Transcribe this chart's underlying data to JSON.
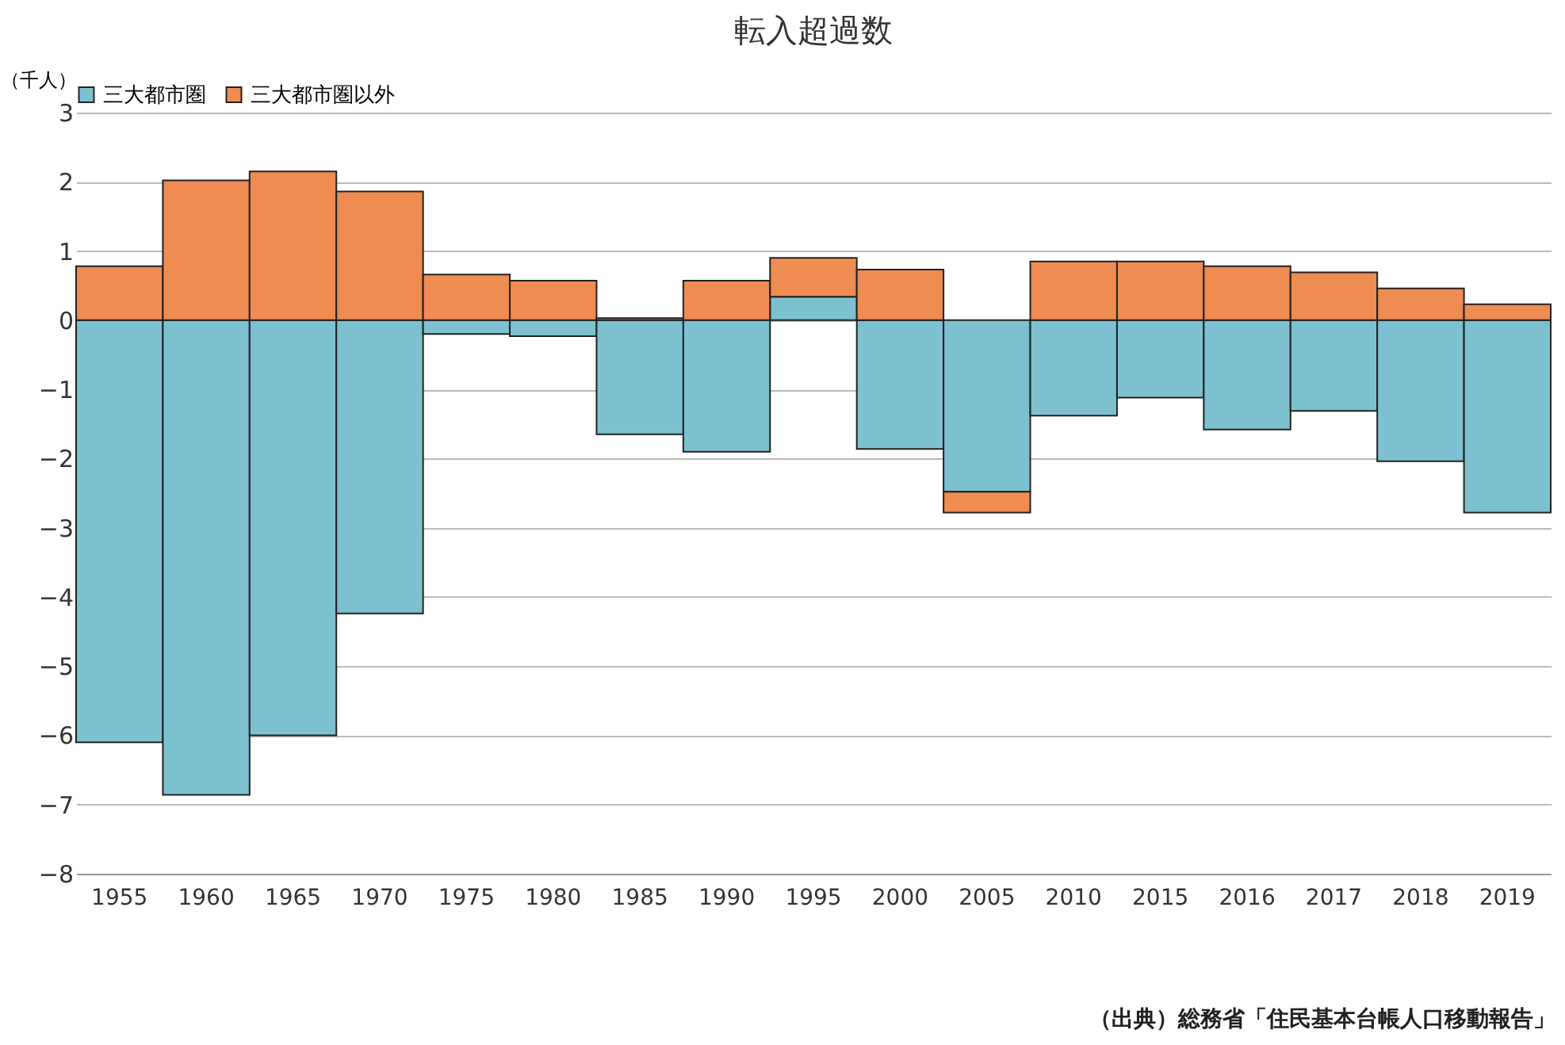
{
  "chart_data": {
    "type": "bar",
    "title": "転入超過数",
    "ylabel": "（千人）",
    "stacked": true,
    "legend": "top",
    "grid": "y",
    "categories": [
      "1955",
      "1960",
      "1965",
      "1970",
      "1975",
      "1980",
      "1985",
      "1990",
      "1995",
      "2000",
      "2005",
      "2010",
      "2015",
      "2016",
      "2017",
      "2018",
      "2019"
    ],
    "series": [
      {
        "name": "三大都市圏",
        "color": "#7dc1d1",
        "values": [
          -6.1,
          -6.86,
          -6.0,
          -4.24,
          -0.2,
          -0.23,
          -1.65,
          -1.9,
          0.34,
          -1.86,
          -2.48,
          -1.38,
          -1.12,
          -1.58,
          -1.31,
          -2.04,
          -2.78
        ]
      },
      {
        "name": "三大都市圏以外",
        "color": "#ee8c51",
        "values": [
          0.78,
          2.02,
          2.15,
          1.86,
          0.66,
          0.57,
          0.03,
          0.57,
          0.56,
          0.73,
          -0.3,
          0.85,
          0.85,
          0.78,
          0.69,
          0.46,
          0.23
        ]
      }
    ],
    "ylim": [
      -8,
      3
    ],
    "yticks": [
      -8,
      -7,
      -6,
      -5,
      -4,
      -3,
      -2,
      -1,
      0,
      1,
      2,
      3
    ],
    "annotations": [
      "（出典）総務省「住民基本台帳人口移動報告」"
    ]
  }
}
